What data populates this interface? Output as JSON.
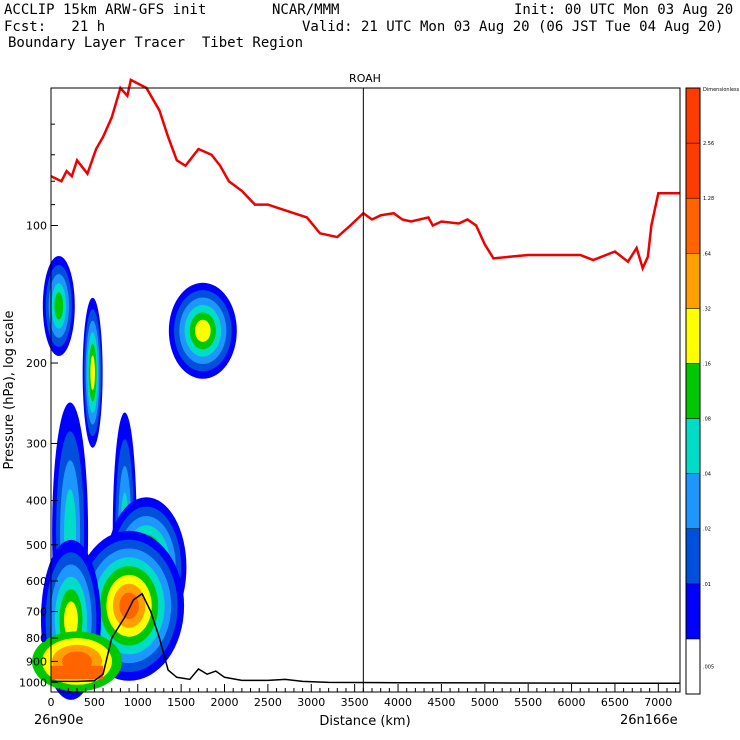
{
  "header": {
    "model": "ACCLIP 15km ARW-GFS init",
    "org": "NCAR/MMM",
    "init": "Init: 00 UTC Mon 03 Aug 20",
    "fcst": "Fcst:   21 h",
    "valid": "Valid: 21 UTC Mon 03 Aug 20 (06 JST Tue 04 Aug 20)",
    "product": "Boundary Layer Tracer  Tibet Region"
  },
  "chart_data": {
    "type": "cross-section",
    "title": "ROAH",
    "xlabel": "Distance (km)",
    "ylabel": "Pressure (hPa), log scale",
    "xlim": [
      0,
      7250
    ],
    "ylim_hpa": [
      1050,
      50
    ],
    "x_ticks": [
      0,
      500,
      1000,
      1500,
      2000,
      2500,
      3000,
      3500,
      4000,
      4500,
      5000,
      5500,
      6000,
      6500,
      7000
    ],
    "y_ticks": [
      100,
      200,
      300,
      400,
      500,
      600,
      700,
      800,
      900,
      1000
    ],
    "left_endpoint": "26n90e",
    "right_endpoint": "26n166e",
    "marker_line_km": 3600,
    "colorbar": {
      "label": "Dimensionless",
      "levels": [
        ".005",
        ".01",
        ".02",
        ".04",
        ".08",
        ".16",
        ".32",
        ".64",
        "1.28",
        "2.56"
      ],
      "colors": [
        "#ffffff",
        "#0000ff",
        "#0050dc",
        "#1e96ff",
        "#00dcc8",
        "#00c800",
        "#ffff00",
        "#ffa000",
        "#ff6400",
        "#ff3c00"
      ]
    },
    "tropopause_red_line": [
      [
        0,
        78
      ],
      [
        120,
        80
      ],
      [
        180,
        76
      ],
      [
        240,
        78
      ],
      [
        300,
        72
      ],
      [
        420,
        77
      ],
      [
        520,
        68
      ],
      [
        600,
        64
      ],
      [
        700,
        58
      ],
      [
        800,
        50
      ],
      [
        880,
        52
      ],
      [
        920,
        48
      ],
      [
        1100,
        50
      ],
      [
        1250,
        56
      ],
      [
        1350,
        64
      ],
      [
        1450,
        72
      ],
      [
        1550,
        74
      ],
      [
        1700,
        68
      ],
      [
        1850,
        70
      ],
      [
        1950,
        74
      ],
      [
        2050,
        80
      ],
      [
        2200,
        84
      ],
      [
        2350,
        90
      ],
      [
        2500,
        90
      ],
      [
        2650,
        92
      ],
      [
        2800,
        94
      ],
      [
        2950,
        96
      ],
      [
        3100,
        104
      ],
      [
        3300,
        106
      ],
      [
        3450,
        100
      ],
      [
        3600,
        94
      ],
      [
        3700,
        97
      ],
      [
        3800,
        95
      ],
      [
        3950,
        94
      ],
      [
        4050,
        97
      ],
      [
        4150,
        98
      ],
      [
        4350,
        96
      ],
      [
        4400,
        100
      ],
      [
        4500,
        98
      ],
      [
        4700,
        99
      ],
      [
        4800,
        97
      ],
      [
        4900,
        100
      ],
      [
        5000,
        110
      ],
      [
        5100,
        118
      ],
      [
        5300,
        117
      ],
      [
        5500,
        116
      ],
      [
        6100,
        116
      ],
      [
        6250,
        119
      ],
      [
        6500,
        114
      ],
      [
        6650,
        120
      ],
      [
        6750,
        112
      ],
      [
        6820,
        124
      ],
      [
        6880,
        117
      ],
      [
        6920,
        100
      ],
      [
        7000,
        85
      ],
      [
        7250,
        85
      ]
    ],
    "terrain_black_line": [
      [
        0,
        995
      ],
      [
        300,
        995
      ],
      [
        500,
        992
      ],
      [
        600,
        960
      ],
      [
        700,
        800
      ],
      [
        850,
        720
      ],
      [
        950,
        660
      ],
      [
        1050,
        640
      ],
      [
        1150,
        700
      ],
      [
        1250,
        800
      ],
      [
        1350,
        940
      ],
      [
        1450,
        975
      ],
      [
        1600,
        985
      ],
      [
        1700,
        935
      ],
      [
        1800,
        960
      ],
      [
        1900,
        945
      ],
      [
        2000,
        975
      ],
      [
        2200,
        990
      ],
      [
        2500,
        990
      ],
      [
        2700,
        985
      ],
      [
        2900,
        995
      ],
      [
        3200,
        1000
      ],
      [
        4000,
        1002
      ],
      [
        5000,
        1003
      ],
      [
        6000,
        1004
      ],
      [
        7250,
        1005
      ]
    ],
    "tracer_blobs": [
      {
        "name": "upper-left-plume",
        "center_km": [
          60,
          145
        ],
        "level": ".16"
      },
      {
        "name": "isolated-blob",
        "center_km": [
          1750,
          170
        ],
        "level": ".32"
      },
      {
        "name": "low-level-column",
        "center_km": [
          1000,
          620
        ],
        "level": ".64"
      },
      {
        "name": "surface-layer",
        "center_km": [
          250,
          880
        ],
        "level": "1.28"
      }
    ]
  }
}
